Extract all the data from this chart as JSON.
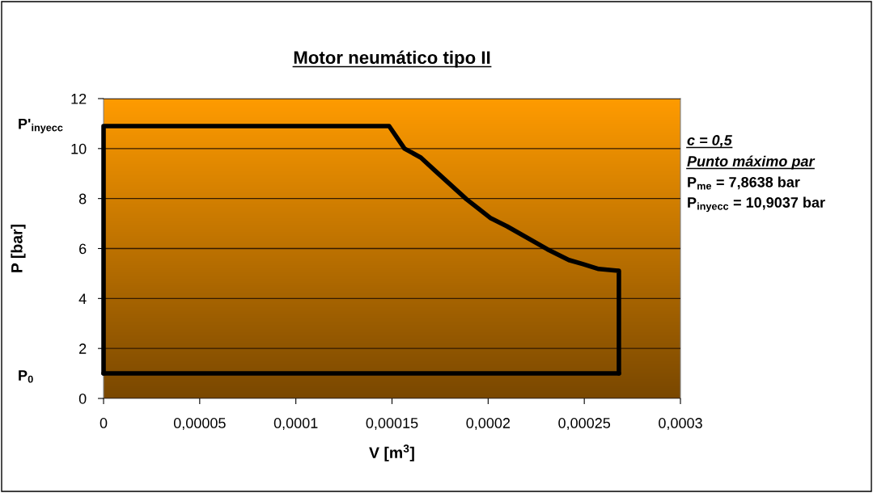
{
  "chart_data": {
    "type": "line",
    "title": "Motor neumático tipo II",
    "xlabel": "V [m$^{3}$]",
    "ylabel": "P [bar]",
    "series": [
      {
        "color": "#000000",
        "x": [
          0,
          0,
          0.0001485,
          0.0001565,
          0.000165,
          0.0001719,
          0.0001888,
          0.0002014,
          0.0002098,
          0.0002308,
          0.000242,
          0.0002491,
          0.0002575,
          0.000268,
          0.000268
        ],
        "values": [
          1,
          10.9,
          10.9,
          10.0,
          9.64,
          9.15,
          7.97,
          7.21,
          6.89,
          5.97,
          5.54,
          5.38,
          5.18,
          5.11,
          1
        ]
      },
      {
        "color": "#000000",
        "x": [
          0,
          0.000268
        ],
        "values": [
          1,
          1
        ]
      }
    ],
    "xlim": [
      0,
      0.0003
    ],
    "ylim": [
      0,
      12
    ],
    "xticks": [
      0,
      {
        "value": 5e-05,
        "label": "0,00005"
      },
      {
        "value": 0.0001,
        "label": "0,0001"
      },
      {
        "value": 0.00015,
        "label": "0,00015"
      },
      {
        "value": 0.0002,
        "label": "0,0002"
      },
      {
        "value": 0.00025,
        "label": "0,00025"
      },
      {
        "value": 0.0003,
        "label": "0,0003"
      }
    ],
    "yticks": [
      0,
      2,
      4,
      6,
      8,
      10,
      12
    ],
    "grid": "y",
    "marker": "none",
    "line_style": "solid",
    "annotations": [
      "P'$_{inyecc}$",
      "P$_{0}$",
      "c = 0,5",
      "Punto máximo par",
      "P$_{me}$ = 7,8638 bar",
      "P$_{inyecc}$ = 10,9037 bar"
    ]
  }
}
